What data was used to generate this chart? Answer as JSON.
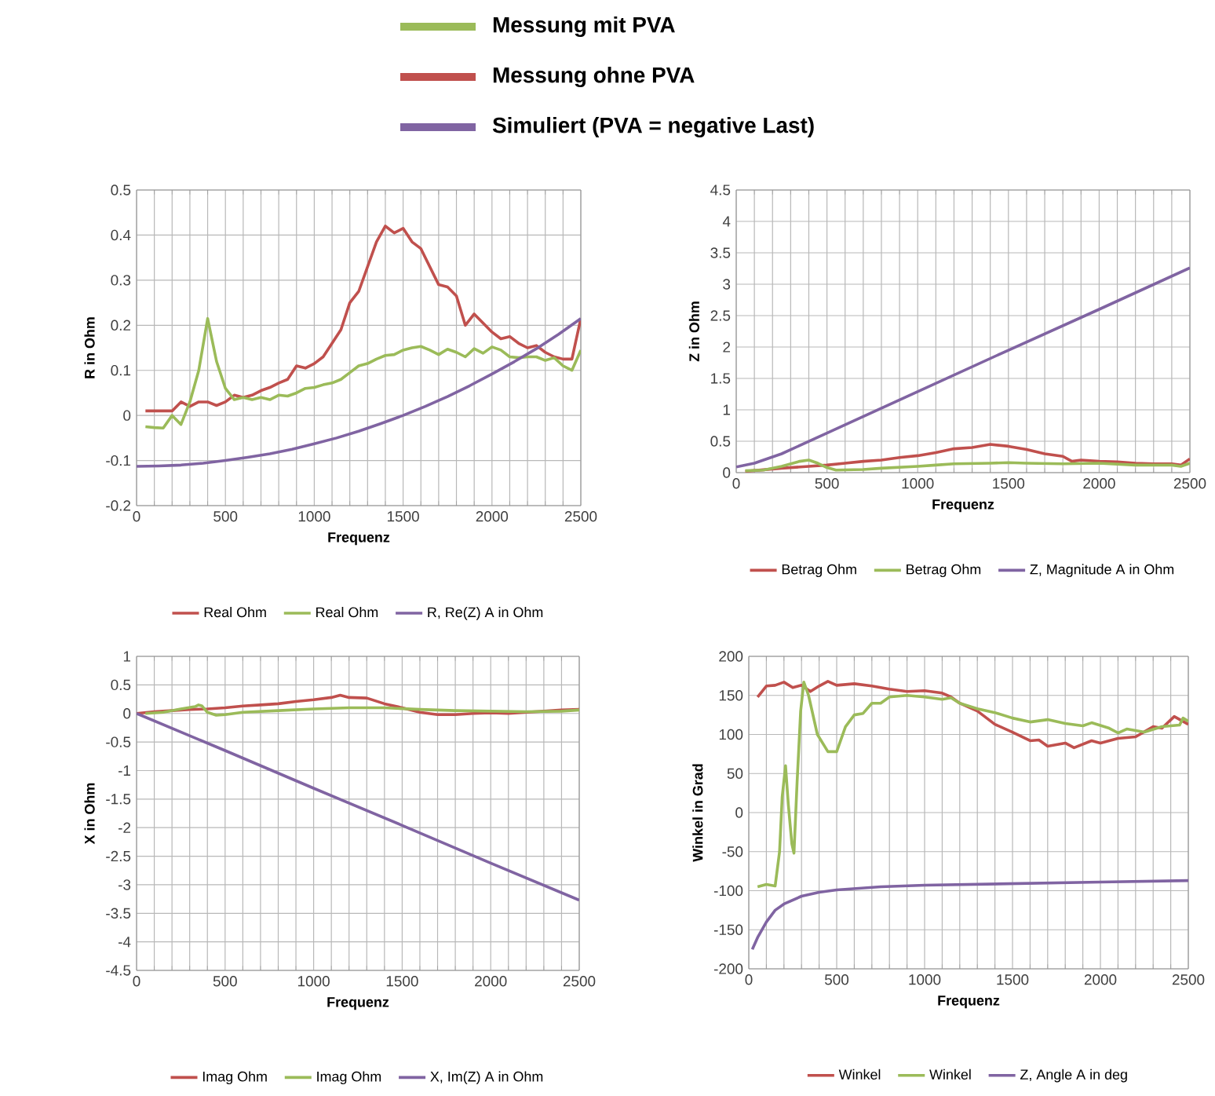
{
  "chart_data": [
    {
      "type": "other",
      "series": [
        {
          "name": "Messung mit PVA",
          "color": "#9bbb59"
        },
        {
          "name": "Messung ohne PVA",
          "color": "#c0504d"
        },
        {
          "name": "Simuliert (PVA = negative Last)",
          "color": "#8064a2"
        }
      ]
    },
    {
      "type": "line",
      "xlabel": "Frequenz",
      "ylabel": "R in Ohm",
      "xlim": [
        0,
        2500
      ],
      "ylim": [
        -0.2,
        0.5
      ],
      "xticks": [
        0,
        500,
        1000,
        1500,
        2000,
        2500
      ],
      "yticks": [
        -0.2,
        -0.1,
        0,
        0.1,
        0.2,
        0.3,
        0.4,
        0.5
      ],
      "grid": true,
      "legend": "bottom",
      "series": [
        {
          "name": "Real Ohm",
          "color": "#c0504d",
          "x": [
            50,
            150,
            200,
            250,
            300,
            350,
            400,
            450,
            500,
            550,
            600,
            650,
            700,
            750,
            800,
            850,
            900,
            950,
            1000,
            1050,
            1100,
            1150,
            1200,
            1250,
            1300,
            1350,
            1400,
            1450,
            1500,
            1550,
            1600,
            1650,
            1700,
            1750,
            1800,
            1850,
            1900,
            1950,
            2000,
            2050,
            2100,
            2150,
            2200,
            2250,
            2300,
            2350,
            2400,
            2450,
            2500
          ],
          "values": [
            0.01,
            0.01,
            0.01,
            0.03,
            0.02,
            0.03,
            0.03,
            0.022,
            0.03,
            0.045,
            0.04,
            0.045,
            0.055,
            0.062,
            0.072,
            0.08,
            0.11,
            0.105,
            0.115,
            0.13,
            0.16,
            0.19,
            0.25,
            0.275,
            0.33,
            0.385,
            0.42,
            0.405,
            0.415,
            0.385,
            0.37,
            0.33,
            0.29,
            0.285,
            0.265,
            0.2,
            0.225,
            0.205,
            0.185,
            0.17,
            0.175,
            0.16,
            0.15,
            0.155,
            0.14,
            0.13,
            0.125,
            0.125,
            0.215
          ]
        },
        {
          "name": "Real Ohm",
          "color": "#9bbb59",
          "x": [
            50,
            100,
            150,
            200,
            250,
            300,
            350,
            400,
            450,
            500,
            550,
            600,
            650,
            700,
            750,
            800,
            850,
            900,
            950,
            1000,
            1050,
            1100,
            1150,
            1200,
            1250,
            1300,
            1350,
            1400,
            1450,
            1500,
            1550,
            1600,
            1650,
            1700,
            1750,
            1800,
            1850,
            1900,
            1950,
            2000,
            2050,
            2100,
            2150,
            2200,
            2250,
            2300,
            2350,
            2400,
            2450,
            2500
          ],
          "values": [
            -0.025,
            -0.027,
            -0.028,
            0.0,
            -0.02,
            0.03,
            0.1,
            0.215,
            0.12,
            0.06,
            0.035,
            0.04,
            0.035,
            0.04,
            0.035,
            0.045,
            0.043,
            0.05,
            0.06,
            0.062,
            0.068,
            0.072,
            0.08,
            0.095,
            0.11,
            0.115,
            0.125,
            0.133,
            0.135,
            0.145,
            0.15,
            0.153,
            0.145,
            0.135,
            0.147,
            0.14,
            0.13,
            0.148,
            0.138,
            0.152,
            0.145,
            0.13,
            0.128,
            0.13,
            0.13,
            0.122,
            0.128,
            0.11,
            0.1,
            0.145
          ]
        },
        {
          "name": "R, Re(Z) A in Ohm",
          "color": "#8064a2",
          "x": [
            0,
            125,
            250,
            375,
            500,
            625,
            750,
            875,
            1000,
            1125,
            1250,
            1375,
            1500,
            1625,
            1750,
            1875,
            2000,
            2125,
            2250,
            2375,
            2500
          ],
          "values": [
            -0.113,
            -0.112,
            -0.11,
            -0.106,
            -0.1,
            -0.093,
            -0.085,
            -0.075,
            -0.063,
            -0.05,
            -0.035,
            -0.018,
            0.0,
            0.02,
            0.042,
            0.066,
            0.092,
            0.119,
            0.148,
            0.18,
            0.215
          ]
        }
      ]
    },
    {
      "type": "line",
      "xlabel": "Frequenz",
      "ylabel": "Z in Ohm",
      "xlim": [
        0,
        2500
      ],
      "ylim": [
        0,
        4.5
      ],
      "xticks": [
        0,
        500,
        1000,
        1500,
        2000,
        2500
      ],
      "yticks": [
        0,
        0.5,
        1,
        1.5,
        2,
        2.5,
        3,
        3.5,
        4,
        4.5
      ],
      "grid": true,
      "legend": "bottom",
      "series": [
        {
          "name": "Betrag Ohm",
          "color": "#c0504d",
          "x": [
            50,
            250,
            400,
            500,
            600,
            700,
            800,
            900,
            1000,
            1100,
            1200,
            1300,
            1400,
            1500,
            1600,
            1700,
            1800,
            1850,
            1900,
            2000,
            2100,
            2200,
            2300,
            2400,
            2450,
            2500
          ],
          "values": [
            0.02,
            0.07,
            0.1,
            0.12,
            0.15,
            0.18,
            0.2,
            0.24,
            0.27,
            0.32,
            0.38,
            0.4,
            0.45,
            0.42,
            0.37,
            0.3,
            0.26,
            0.18,
            0.2,
            0.18,
            0.17,
            0.15,
            0.14,
            0.14,
            0.12,
            0.22
          ]
        },
        {
          "name": "Betrag Ohm",
          "color": "#9bbb59",
          "x": [
            50,
            150,
            250,
            350,
            400,
            450,
            500,
            550,
            700,
            800,
            1000,
            1100,
            1200,
            1400,
            1500,
            1600,
            1800,
            2000,
            2200,
            2400,
            2450,
            2500
          ],
          "values": [
            0.03,
            0.04,
            0.1,
            0.18,
            0.2,
            0.15,
            0.08,
            0.04,
            0.05,
            0.07,
            0.1,
            0.12,
            0.14,
            0.15,
            0.16,
            0.15,
            0.14,
            0.15,
            0.12,
            0.12,
            0.1,
            0.15
          ]
        },
        {
          "name": "Z, Magnitude A in Ohm",
          "color": "#8064a2",
          "x": [
            0,
            100,
            250,
            500,
            1000,
            1500,
            2000,
            2500
          ],
          "values": [
            0.09,
            0.15,
            0.3,
            0.63,
            1.29,
            1.95,
            2.6,
            3.26
          ]
        }
      ]
    },
    {
      "type": "line",
      "xlabel": "Frequenz",
      "ylabel": "X in Ohm",
      "xlim": [
        0,
        2500
      ],
      "ylim": [
        -4.5,
        1
      ],
      "xticks": [
        0,
        500,
        1000,
        1500,
        2000,
        2500
      ],
      "yticks": [
        -4.5,
        -4,
        -3.5,
        -3,
        -2.5,
        -2,
        -1.5,
        -1,
        -0.5,
        0,
        0.5,
        1
      ],
      "grid": true,
      "legend": "bottom",
      "series": [
        {
          "name": "Imag Ohm",
          "color": "#c0504d",
          "x": [
            0,
            100,
            200,
            300,
            400,
            500,
            600,
            700,
            800,
            900,
            1000,
            1100,
            1150,
            1200,
            1300,
            1400,
            1500,
            1600,
            1700,
            1800,
            1900,
            2000,
            2100,
            2200,
            2300,
            2400,
            2500
          ],
          "values": [
            0,
            0.03,
            0.05,
            0.07,
            0.08,
            0.1,
            0.13,
            0.15,
            0.17,
            0.21,
            0.24,
            0.28,
            0.32,
            0.28,
            0.27,
            0.17,
            0.1,
            0.02,
            -0.02,
            -0.02,
            0.0,
            0.01,
            0.0,
            0.02,
            0.04,
            0.06,
            0.07
          ]
        },
        {
          "name": "Imag Ohm",
          "color": "#9bbb59",
          "x": [
            50,
            150,
            250,
            330,
            350,
            370,
            400,
            450,
            500,
            600,
            800,
            1000,
            1200,
            1400,
            1600,
            1800,
            2000,
            2200,
            2400,
            2500
          ],
          "values": [
            0,
            0.02,
            0.08,
            0.12,
            0.15,
            0.13,
            0.02,
            -0.03,
            -0.02,
            0.02,
            0.05,
            0.08,
            0.1,
            0.1,
            0.07,
            0.05,
            0.04,
            0.03,
            0.04,
            0.06
          ]
        },
        {
          "name": "X, Im(Z) A in Ohm",
          "color": "#8064a2",
          "x": [
            0,
            500,
            1000,
            1500,
            2000,
            2500
          ],
          "values": [
            0,
            -0.65,
            -1.31,
            -1.96,
            -2.62,
            -3.27
          ]
        }
      ]
    },
    {
      "type": "line",
      "xlabel": "Frequenz",
      "ylabel": "Winkel in Grad",
      "xlim": [
        0,
        2500
      ],
      "ylim": [
        -200,
        200
      ],
      "xticks": [
        0,
        500,
        1000,
        1500,
        2000,
        2500
      ],
      "yticks": [
        -200,
        -150,
        -100,
        -50,
        0,
        50,
        100,
        150,
        200
      ],
      "grid": true,
      "legend": "bottom",
      "series": [
        {
          "name": "Winkel",
          "color": "#c0504d",
          "x": [
            50,
            100,
            150,
            200,
            250,
            300,
            350,
            400,
            450,
            500,
            600,
            700,
            800,
            900,
            1000,
            1100,
            1150,
            1200,
            1300,
            1400,
            1500,
            1600,
            1650,
            1700,
            1800,
            1850,
            1950,
            2000,
            2100,
            2200,
            2300,
            2350,
            2420,
            2500
          ],
          "values": [
            148,
            162,
            163,
            167,
            160,
            163,
            155,
            162,
            168,
            163,
            165,
            162,
            158,
            155,
            156,
            153,
            148,
            140,
            130,
            113,
            103,
            92,
            93,
            85,
            89,
            83,
            92,
            89,
            95,
            97,
            110,
            108,
            123,
            113
          ]
        },
        {
          "name": "Winkel",
          "color": "#9bbb59",
          "x": [
            50,
            100,
            150,
            175,
            190,
            209,
            225,
            245,
            257,
            275,
            295,
            313,
            340,
            390,
            450,
            500,
            550,
            600,
            650,
            700,
            750,
            800,
            900,
            1000,
            1100,
            1150,
            1200,
            1300,
            1400,
            1500,
            1600,
            1700,
            1800,
            1900,
            1950,
            2050,
            2100,
            2150,
            2250,
            2350,
            2450,
            2470,
            2500
          ],
          "values": [
            -95,
            -92,
            -94,
            -50,
            20,
            60,
            10,
            -40,
            -52,
            40,
            130,
            167,
            150,
            100,
            78,
            78,
            110,
            125,
            127,
            140,
            140,
            148,
            150,
            148,
            145,
            147,
            140,
            133,
            128,
            121,
            116,
            119,
            114,
            111,
            115,
            108,
            102,
            107,
            103,
            110,
            112,
            121,
            117
          ]
        },
        {
          "name": "Z, Angle A in deg",
          "color": "#8064a2",
          "x": [
            20,
            50,
            100,
            150,
            200,
            300,
            400,
            500,
            750,
            1000,
            1500,
            2000,
            2500
          ],
          "values": [
            -175,
            -160,
            -140,
            -125,
            -117,
            -107,
            -102,
            -99,
            -95,
            -93,
            -91,
            -89,
            -87
          ]
        }
      ]
    }
  ]
}
